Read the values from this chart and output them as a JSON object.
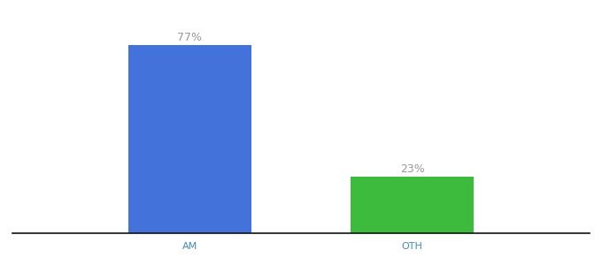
{
  "categories": [
    "AM",
    "OTH"
  ],
  "values": [
    77,
    23
  ],
  "bar_colors": [
    "#4472db",
    "#3dbb3d"
  ],
  "label_texts": [
    "77%",
    "23%"
  ],
  "xlabel": "",
  "ylabel": "",
  "ylim": [
    0,
    88
  ],
  "bar_width": 0.55,
  "background_color": "#ffffff",
  "label_fontsize": 9,
  "tick_fontsize": 8,
  "label_color": "#999999",
  "tick_color": "#4488bb"
}
